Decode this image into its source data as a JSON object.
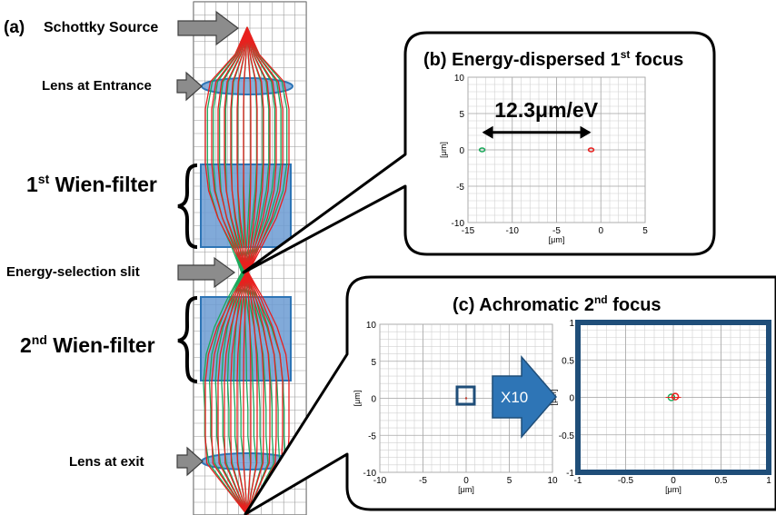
{
  "panel_a": {
    "title": "(a)",
    "labels": {
      "source": "Schottky Source",
      "entrance_lens": "Lens at Entrance",
      "wien1_pre": "1",
      "wien1_sup": "st",
      "wien1_post": " Wien-filter",
      "slit": "Energy-selection slit",
      "wien2_pre": "2",
      "wien2_sup": "nd",
      "wien2_post": " Wien-filter",
      "exit_lens": "Lens at exit"
    }
  },
  "panel_b": {
    "title_pre": "(b) Energy-dispersed 1",
    "title_sup": "st",
    "title_post": " focus",
    "annotation": "12.3μm/eV",
    "xlabel": "[μm]",
    "ylabel": "[μm]",
    "xticks": [
      "-15",
      "-10",
      "-5",
      "0",
      "5"
    ],
    "yticks": [
      "10",
      "5",
      "0",
      "-5",
      "-10"
    ]
  },
  "panel_c": {
    "title_pre": "(c) Achromatic 2",
    "title_sup": "nd",
    "title_post": " focus",
    "magnify_label": "X10",
    "left": {
      "xlabel": "[μm]",
      "ylabel": "[μm]",
      "xticks": [
        "-10",
        "-5",
        "0",
        "5",
        "10"
      ],
      "yticks": [
        "10",
        "5",
        "0",
        "-5",
        "-10"
      ]
    },
    "right": {
      "xlabel": "[μm]",
      "ylabel": "[μm]",
      "xticks": [
        "-1",
        "-0.5",
        "0",
        "0.5",
        "1"
      ],
      "yticks": [
        "1",
        "0.5",
        "0",
        "-0.5",
        "-1"
      ]
    }
  },
  "colors": {
    "ray_red": "#e8201e",
    "ray_green": "#1aa85a",
    "filter_blue": "#6b9bd2",
    "lens_blue": "#4a86c8",
    "arrow_gray": "#8c8c8c",
    "frame_navy": "#1f4e79"
  }
}
